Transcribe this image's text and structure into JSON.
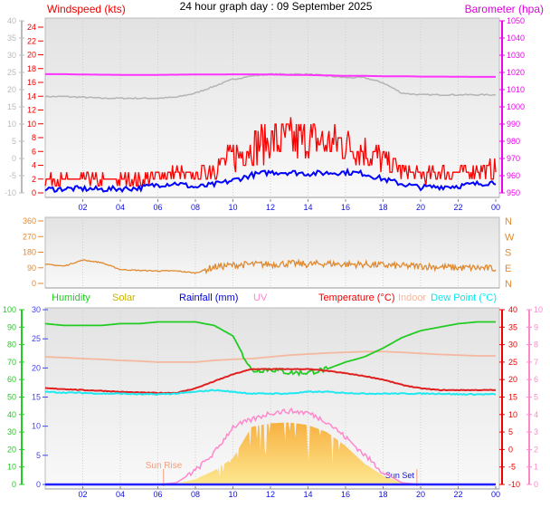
{
  "title": "24 hour graph day : 09 September 2025",
  "time_labels": [
    "02",
    "04",
    "06",
    "08",
    "10",
    "12",
    "14",
    "16",
    "18",
    "20",
    "22",
    "00"
  ],
  "chart_data": [
    {
      "type": "line",
      "name": "wind-barometer",
      "title": "Windspeed (kts)",
      "right_title": "Barometer (hpa)",
      "x_unit": "hour",
      "left_grey_axis": {
        "range": [
          -10,
          40
        ],
        "ticks": [
          "40",
          "35",
          "30",
          "25",
          "20",
          "15",
          "10",
          "5",
          "0",
          "-5",
          "-10"
        ]
      },
      "wind_axis": {
        "range": [
          0,
          24
        ],
        "ticks": [
          "24",
          "22",
          "20",
          "18",
          "16",
          "14",
          "12",
          "10",
          "8",
          "6",
          "4",
          "2",
          "0"
        ]
      },
      "baro_axis": {
        "range": [
          950,
          1050
        ],
        "ticks": [
          "1050",
          "1040",
          "1030",
          "1020",
          "1010",
          "1000",
          "990",
          "980",
          "970",
          "960",
          "950"
        ]
      },
      "hours": [
        0,
        1,
        2,
        3,
        4,
        5,
        6,
        7,
        8,
        9,
        10,
        11,
        12,
        13,
        14,
        15,
        16,
        17,
        18,
        19,
        20,
        21,
        22,
        23,
        24
      ],
      "series": [
        {
          "name": "Wind gust",
          "axis": "wind",
          "color": "#ff0000",
          "values": [
            2,
            2,
            2,
            2,
            2,
            2,
            2.5,
            3,
            2.5,
            4,
            5.5,
            7,
            8,
            8,
            8,
            7.5,
            7.5,
            6.5,
            5,
            3.5,
            2.5,
            3,
            3,
            3.5,
            3.5
          ]
        },
        {
          "name": "Wind average",
          "axis": "wind",
          "color": "#0000ff",
          "values": [
            0.5,
            0.6,
            0.6,
            0.5,
            0.6,
            0.7,
            1.2,
            1.4,
            0.8,
            1.2,
            1.8,
            2.6,
            3,
            3,
            2.8,
            2.9,
            3,
            2.8,
            2,
            1.3,
            0.8,
            0.9,
            1.0,
            1.3,
            1.6
          ]
        },
        {
          "name": "Temperature (grey)",
          "axis": "grey",
          "color": "#b4b4b4",
          "values": [
            18,
            18,
            17.8,
            17.5,
            17.5,
            17.5,
            17.5,
            17.8,
            19,
            21,
            23,
            24,
            24.5,
            24.5,
            24.5,
            24,
            23.5,
            23.5,
            22,
            19,
            18.5,
            18.5,
            18.5,
            18.5,
            18.5
          ]
        },
        {
          "name": "Barometer",
          "axis": "baro",
          "color": "#ff33ff",
          "values": [
            1019,
            1019,
            1018.8,
            1018.7,
            1018.6,
            1018.6,
            1018.6,
            1018.7,
            1018.8,
            1018.8,
            1018.9,
            1018.9,
            1018.8,
            1018.6,
            1018.5,
            1018.3,
            1018,
            1018,
            1017.8,
            1017.8,
            1017.6,
            1017.6,
            1017.5,
            1017.4,
            1017.4
          ]
        }
      ]
    },
    {
      "type": "line",
      "name": "wind-direction",
      "axis": {
        "range": [
          0,
          360
        ],
        "ticks": [
          "360",
          "270",
          "180",
          "90",
          "0"
        ]
      },
      "compass": [
        "N",
        "W",
        "S",
        "E",
        "N"
      ],
      "hours": [
        0,
        1,
        2,
        3,
        4,
        5,
        6,
        7,
        8,
        9,
        10,
        11,
        12,
        13,
        14,
        15,
        16,
        17,
        18,
        19,
        20,
        21,
        22,
        23,
        24
      ],
      "series": [
        {
          "name": "Wind direction",
          "color": "#e08a30",
          "values": [
            110,
            100,
            135,
            120,
            80,
            75,
            72,
            72,
            60,
            95,
            105,
            110,
            110,
            115,
            110,
            115,
            110,
            110,
            105,
            100,
            100,
            95,
            90,
            90,
            85
          ]
        }
      ]
    },
    {
      "type": "line",
      "name": "weather",
      "legend": [
        {
          "label": "Humidity",
          "color": "#22cc22"
        },
        {
          "label": "Solar",
          "color": "#c8b400"
        },
        {
          "label": "Rainfall (mm)",
          "color": "#0000dd"
        },
        {
          "label": "UV",
          "color": "#ff88cc"
        },
        {
          "label": "Temperature (°C)",
          "color": "#ee0000"
        },
        {
          "label": "Indoor",
          "color": "#f4b8a0"
        },
        {
          "label": "Dew Point (°C)",
          "color": "#00e8f0"
        }
      ],
      "humidity_axis": {
        "range": [
          0,
          100
        ],
        "ticks": [
          "100",
          "90",
          "80",
          "70",
          "60",
          "50",
          "40",
          "30",
          "20",
          "10",
          "0"
        ]
      },
      "rain_axis": {
        "range": [
          0,
          30
        ],
        "ticks": [
          "30",
          "25",
          "20",
          "15",
          "10",
          "5",
          "0"
        ]
      },
      "temp_axis": {
        "range": [
          -10,
          40
        ],
        "ticks": [
          "40",
          "35",
          "30",
          "25",
          "20",
          "15",
          "10",
          "5",
          "0",
          "-5",
          "-10"
        ]
      },
      "uv_axis": {
        "range": [
          0,
          10
        ],
        "ticks": [
          "10",
          "9",
          "8",
          "7",
          "6",
          "5",
          "4",
          "3",
          "2",
          "1",
          "0"
        ]
      },
      "hours": [
        0,
        1,
        2,
        3,
        4,
        5,
        6,
        7,
        8,
        9,
        10,
        11,
        12,
        13,
        14,
        15,
        16,
        17,
        18,
        19,
        20,
        21,
        22,
        23,
        24
      ],
      "series": [
        {
          "name": "Solar",
          "color": "#f8b840",
          "values": [
            0,
            0,
            0,
            0,
            0,
            0,
            0,
            5,
            30,
            80,
            150,
            330,
            350,
            355,
            340,
            300,
            220,
            120,
            50,
            10,
            0,
            0,
            0,
            0,
            0
          ]
        },
        {
          "name": "Humidity",
          "color": "#22cc22",
          "values": [
            92,
            91,
            91,
            91,
            92,
            92,
            93,
            93,
            93,
            91,
            85,
            65,
            66,
            64,
            64,
            66,
            70,
            73,
            78,
            84,
            88,
            90,
            92,
            93,
            93
          ]
        },
        {
          "name": "Indoor",
          "color": "#f4b8a0",
          "values": [
            26.5,
            26.3,
            26,
            25.8,
            25.5,
            25.3,
            25,
            25,
            25,
            25.5,
            25.8,
            26,
            26.5,
            27,
            27.3,
            27.6,
            27.8,
            28,
            28,
            27.8,
            27.5,
            27.2,
            27,
            26.8,
            26.8
          ]
        },
        {
          "name": "Temperature",
          "color": "#e02020",
          "values": [
            17.5,
            17.3,
            17,
            16.8,
            16.5,
            16.3,
            16.2,
            16.2,
            17.5,
            19.5,
            21.5,
            23,
            23,
            23,
            23,
            22.5,
            21.8,
            21,
            20,
            18.5,
            17.5,
            17,
            17,
            17,
            17
          ]
        },
        {
          "name": "Dew Point",
          "color": "#20e8f0",
          "values": [
            16.5,
            16.3,
            16.2,
            16,
            16,
            15.8,
            15.8,
            16,
            16.5,
            17,
            16.5,
            16,
            16,
            16,
            16.5,
            16.5,
            16.2,
            16,
            16,
            16,
            16,
            16,
            15.8,
            15.8,
            15.8
          ]
        },
        {
          "name": "UV",
          "color": "#ff88cc",
          "values": [
            0,
            0,
            0,
            0,
            0,
            0,
            0,
            0.1,
            0.8,
            1.8,
            3.3,
            3.7,
            4.1,
            4.2,
            4.1,
            3.6,
            2.7,
            1.7,
            0.7,
            0.1,
            0,
            0,
            0,
            0,
            0
          ]
        },
        {
          "name": "Rainfall",
          "color": "#2222ff",
          "values": [
            0,
            0,
            0,
            0,
            0,
            0,
            0,
            0,
            0,
            0,
            0,
            0,
            0,
            0,
            0,
            0,
            0,
            0,
            0,
            0,
            0,
            0,
            0,
            0,
            0
          ]
        }
      ],
      "sunrise": {
        "label": "Sun Rise",
        "hour": 6.3
      },
      "sunset": {
        "label": "Sun Set",
        "hour": 19.8
      }
    }
  ]
}
